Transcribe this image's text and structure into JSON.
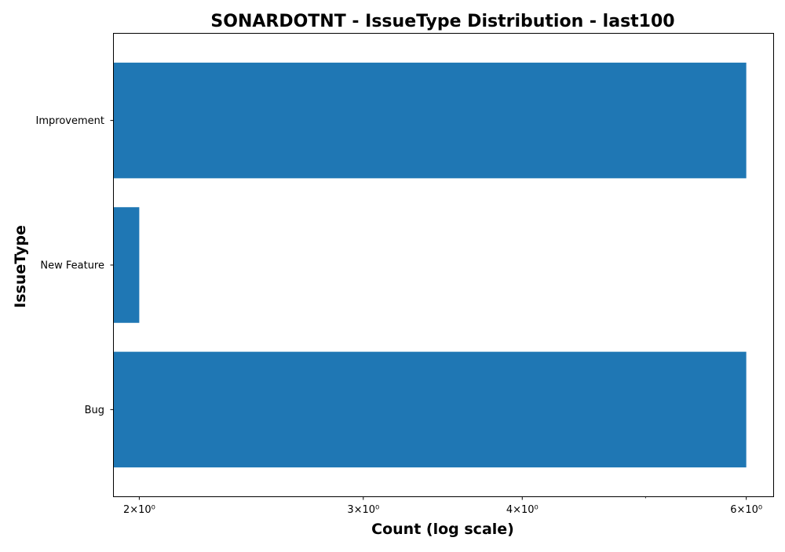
{
  "chart_data": {
    "type": "bar",
    "orientation": "horizontal",
    "title": "SONARDOTNT - IssueType Distribution - last100",
    "xlabel": "Count (log scale)",
    "ylabel": "IssueType",
    "x_scale": "log",
    "xlim": [
      1.91,
      6.3
    ],
    "x_ticks": [
      {
        "value": 2,
        "label": "2×10⁰"
      },
      {
        "value": 3,
        "label": "3×10⁰"
      },
      {
        "value": 4,
        "label": "4×10⁰"
      },
      {
        "value": 6,
        "label": "6×10⁰"
      }
    ],
    "x_minor_ticks": [
      5
    ],
    "categories": [
      "Bug",
      "New Feature",
      "Improvement"
    ],
    "values": [
      6,
      2,
      6
    ],
    "bar_color": "#1f77b4",
    "grid": false,
    "legend": "none"
  }
}
